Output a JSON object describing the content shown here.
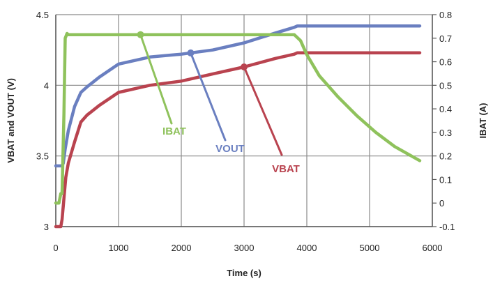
{
  "chart_data": {
    "type": "line",
    "title": "",
    "xlabel": "Time (s)",
    "ylabel_left": "VBAT and VOUT (V)",
    "ylabel_right": "IBAT (A)",
    "xlim": [
      0,
      6000
    ],
    "ylim_left": [
      3,
      4.5
    ],
    "ylim_right": [
      -0.1,
      0.8
    ],
    "x_ticks": [
      "0",
      "1000",
      "2000",
      "3000",
      "4000",
      "5000",
      "6000"
    ],
    "y_left_ticks": [
      "3",
      "3.5",
      "4",
      "4.5"
    ],
    "y_right_ticks": [
      "-0.1",
      "0",
      "0.1",
      "0.2",
      "0.3",
      "0.4",
      "0.5",
      "0.6",
      "0.7",
      "0.8"
    ],
    "grid": true,
    "series": [
      {
        "name": "VOUT",
        "axis": "left",
        "color": "#6a7fc0",
        "x": [
          0,
          100,
          120,
          150,
          200,
          300,
          400,
          500,
          700,
          1000,
          1500,
          2000,
          2500,
          3000,
          3500,
          3800,
          3850,
          4000,
          5000,
          5800
        ],
        "y": [
          3.43,
          3.43,
          3.45,
          3.55,
          3.68,
          3.85,
          3.95,
          3.99,
          4.06,
          4.15,
          4.2,
          4.22,
          4.25,
          4.3,
          4.37,
          4.41,
          4.42,
          4.42,
          4.42,
          4.42
        ]
      },
      {
        "name": "VBAT",
        "axis": "left",
        "color": "#b9434f",
        "x": [
          0,
          80,
          100,
          130,
          160,
          200,
          300,
          400,
          500,
          700,
          1000,
          1500,
          2000,
          2500,
          3000,
          3500,
          3800,
          3850,
          4000,
          5000,
          5800
        ],
        "y": [
          3.0,
          3.0,
          3.05,
          3.2,
          3.35,
          3.45,
          3.6,
          3.74,
          3.79,
          3.86,
          3.95,
          4.0,
          4.03,
          4.08,
          4.13,
          4.19,
          4.22,
          4.23,
          4.23,
          4.23,
          4.23
        ]
      },
      {
        "name": "IBAT",
        "axis": "right",
        "color": "#8fc25c",
        "x": [
          0,
          50,
          80,
          100,
          130,
          150,
          180,
          200,
          1000,
          2000,
          3000,
          3700,
          3800,
          3900,
          4000,
          4200,
          4500,
          4800,
          5100,
          5400,
          5800
        ],
        "y": [
          0.0,
          0.0,
          0.04,
          0.04,
          0.38,
          0.7,
          0.72,
          0.715,
          0.715,
          0.715,
          0.715,
          0.715,
          0.715,
          0.69,
          0.63,
          0.54,
          0.45,
          0.37,
          0.3,
          0.24,
          0.18
        ]
      }
    ],
    "annotations": [
      {
        "text": "IBAT",
        "color": "#8fc25c",
        "target_series": "IBAT",
        "target_x": 1350
      },
      {
        "text": "VOUT",
        "color": "#6a7fc0",
        "target_series": "VOUT",
        "target_x": 2150
      },
      {
        "text": "VBAT",
        "color": "#b9434f",
        "target_series": "VBAT",
        "target_x": 3000
      }
    ]
  }
}
